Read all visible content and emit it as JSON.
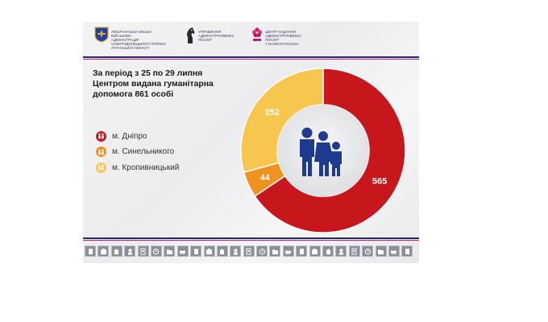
{
  "header": {
    "logos": [
      {
        "icon": "coat-of-arms-icon",
        "text": "Лисичанська міська\nвійськова\nадміністрація\nСєвєродонецького району\nЛуганської області"
      },
      {
        "icon": "horse-head-icon",
        "text": "Управління\nадміністративних\nпослуг"
      },
      {
        "icon": "flower-icon",
        "text": "Центр надання\nадміністративних\nпослуг\nу м.Лисичанську"
      }
    ]
  },
  "title_lines": [
    "За період з 25 по 29 липня",
    "Центром видана гуманітарна",
    "допомога 861 особі"
  ],
  "legend": [
    {
      "label": "м. Дніпро",
      "color": "#c8161d"
    },
    {
      "label": "м. Синельникого",
      "color": "#f0921e"
    },
    {
      "label": "м. Кропивницький",
      "color": "#f7c64f"
    }
  ],
  "colors": {
    "dnipro": "#c8161d",
    "synelnykove": "#f0921e",
    "kropyvnytskyi": "#f7c64f",
    "center_icon": "#1f3b8f",
    "stripe_top": "#1e2a78",
    "stripe_bottom": "#d81b60"
  },
  "chart_data": {
    "type": "pie",
    "variant": "donut",
    "categories": [
      "м. Дніпро",
      "м. Синельникого",
      "м. Кропивницький"
    ],
    "values": [
      565,
      44,
      252
    ],
    "data_labels": [
      "565",
      "44",
      "252"
    ],
    "total": 861,
    "center_icon": "family-icon",
    "legend_position": "left"
  },
  "footer": {
    "tile_icons": [
      "document-icon",
      "building-icon",
      "house-icon",
      "user-icon",
      "passport-icon",
      "clock-icon",
      "folder-icon",
      "car-icon",
      "document-icon",
      "building-icon",
      "house-icon",
      "user-icon",
      "passport-icon",
      "clock-icon",
      "folder-icon",
      "car-icon",
      "document-icon",
      "building-icon",
      "house-icon",
      "user-icon",
      "passport-icon",
      "clock-icon",
      "folder-icon",
      "car-icon",
      "document-icon"
    ]
  }
}
